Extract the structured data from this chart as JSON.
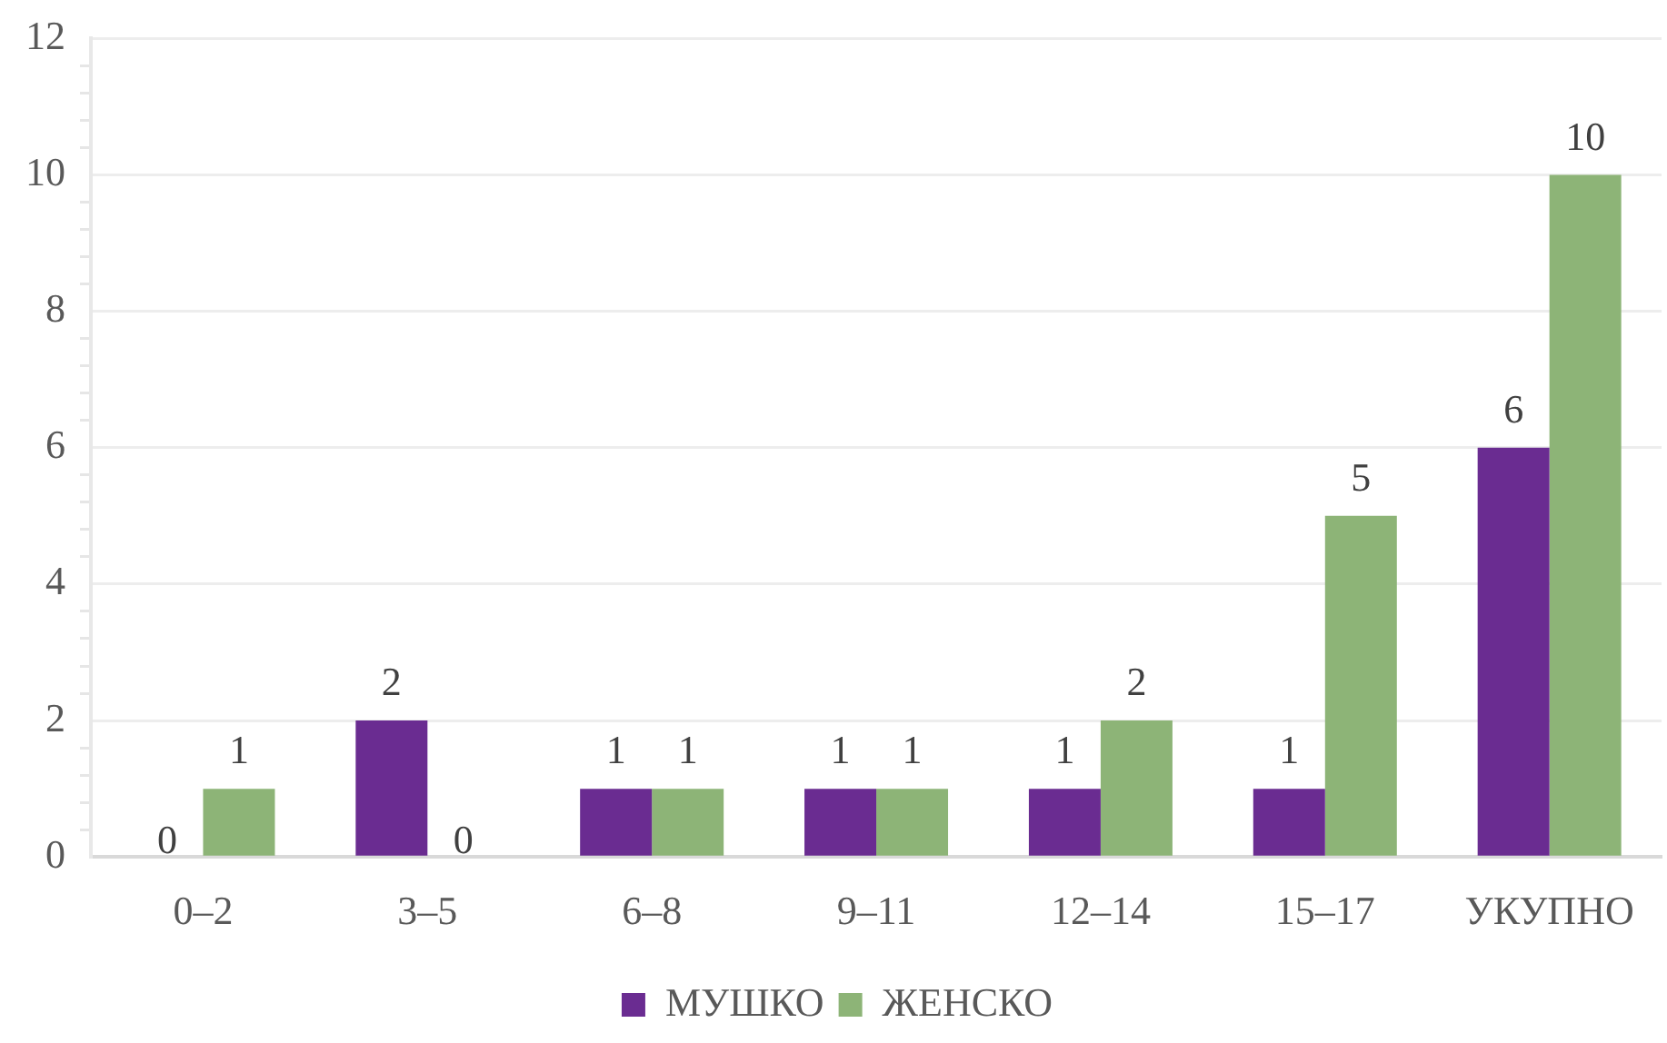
{
  "chart_data": {
    "type": "bar",
    "categories": [
      "0–2",
      "3–5",
      "6–8",
      "9–11",
      "12–14",
      "15–17",
      "УКУПНО"
    ],
    "series": [
      {
        "name": "МУШКО",
        "color": "#6a2c91",
        "values": [
          0,
          2,
          1,
          1,
          1,
          1,
          6
        ]
      },
      {
        "name": "ЖЕНСКО",
        "color": "#8db477",
        "values": [
          1,
          0,
          1,
          1,
          2,
          5,
          10
        ]
      }
    ],
    "ylim": [
      0,
      12
    ],
    "yticks": [
      0,
      {
        "value": 0.4,
        "label": null
      },
      {
        "value": 0.8,
        "label": null
      },
      {
        "value": 1.2,
        "label": null
      },
      {
        "value": 1.6,
        "label": null
      },
      2,
      {
        "value": 2.4,
        "label": null
      },
      {
        "value": 2.8,
        "label": null
      },
      {
        "value": 3.2,
        "label": null
      },
      {
        "value": 3.6,
        "label": null
      },
      4,
      {
        "value": 4.4,
        "label": null
      },
      {
        "value": 4.8,
        "label": null
      },
      {
        "value": 5.2,
        "label": null
      },
      {
        "value": 5.6,
        "label": null
      },
      6,
      {
        "value": 6.4,
        "label": null
      },
      {
        "value": 6.8,
        "label": null
      },
      {
        "value": 7.2,
        "label": null
      },
      {
        "value": 7.6,
        "label": null
      },
      8,
      {
        "value": 8.4,
        "label": null
      },
      {
        "value": 8.8,
        "label": null
      },
      {
        "value": 9.2,
        "label": null
      },
      {
        "value": 9.6,
        "label": null
      },
      10,
      {
        "value": 10.4,
        "label": null
      },
      {
        "value": 10.8,
        "label": null
      },
      {
        "value": 11.2,
        "label": null
      },
      {
        "value": 11.6,
        "label": null
      },
      12
    ],
    "grid": "y",
    "legend": "bottom",
    "data_labels": true
  }
}
